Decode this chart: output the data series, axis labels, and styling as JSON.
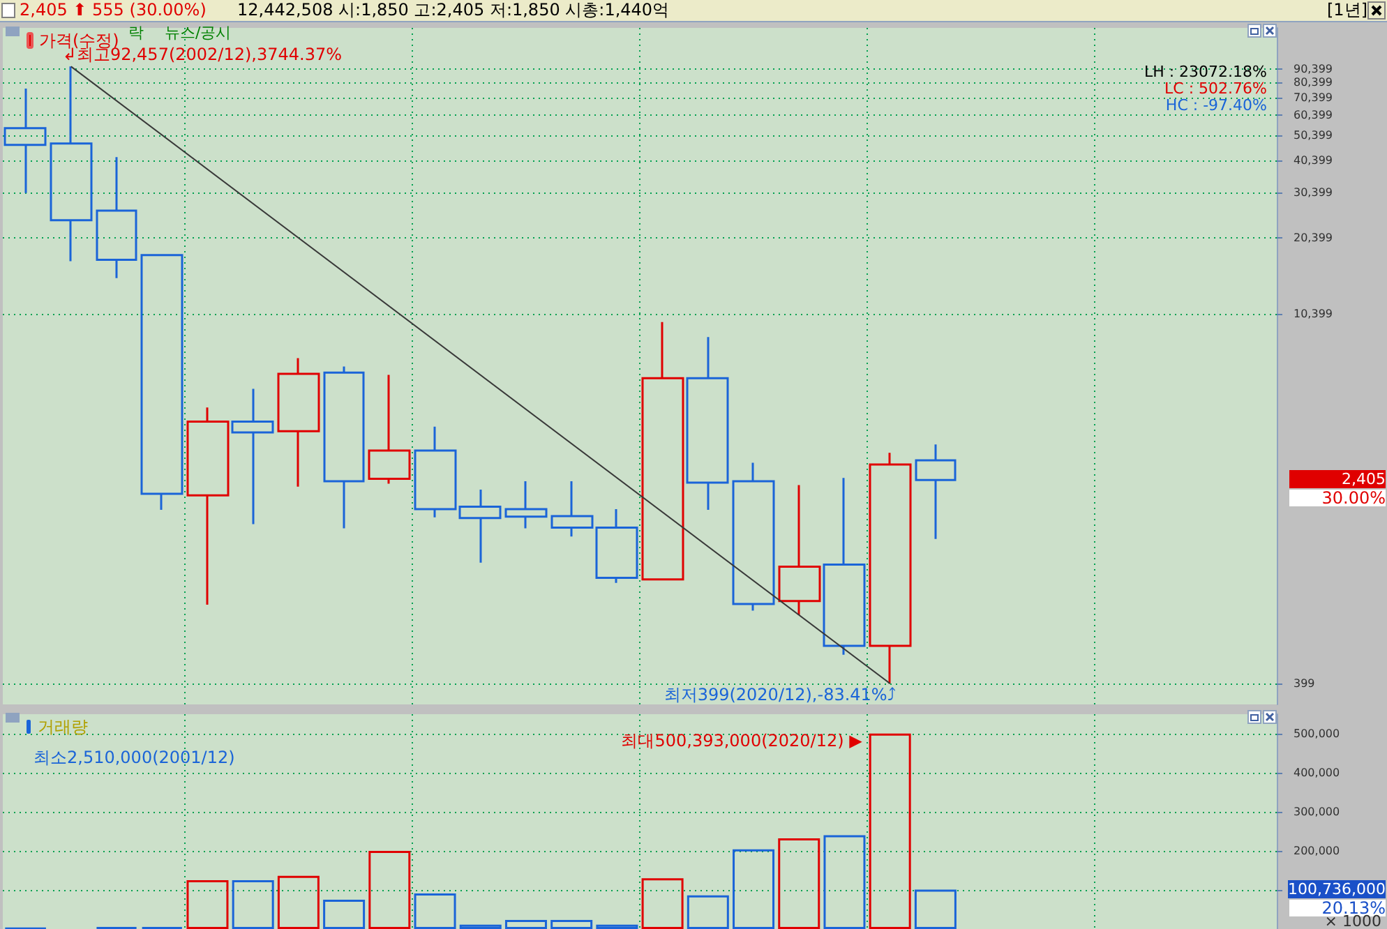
{
  "chart_data": [
    {
      "type": "candlestick",
      "title": "2,405 ⬆ 555 (30.00%)",
      "subtitle": "12,442,508 시:1,850 고:2,405 저:1,850 시총:1,440억",
      "categories": [
        null,
        null,
        null,
        null,
        null,
        null,
        null,
        null,
        null,
        null,
        null,
        null,
        null,
        null,
        null,
        null,
        null,
        null,
        null,
        null,
        null,
        null,
        null,
        null,
        null,
        null,
        null,
        null
      ],
      "series": [
        {
          "name": "가격(수정)",
          "ohlc": [
            [
              53700,
              76100,
              30300,
              46300
            ],
            [
              46900,
              92457,
              16600,
              23800
            ],
            [
              25900,
              41600,
              14300,
              16800
            ],
            [
              17500,
              17500,
              1850,
              2130
            ],
            [
              2100,
              4560,
              800,
              4030
            ],
            [
              4030,
              5380,
              1630,
              3660
            ],
            [
              3700,
              7050,
              2270,
              6140
            ],
            [
              6210,
              6550,
              1570,
              2380
            ],
            [
              2430,
              6080,
              2330,
              3120
            ],
            [
              3120,
              3850,
              1730,
              1860
            ],
            [
              1900,
              2210,
              1160,
              1720
            ],
            [
              1860,
              2380,
              1570,
              1740
            ],
            [
              1750,
              2380,
              1460,
              1580
            ],
            [
              1580,
              1860,
              970,
              1015
            ],
            [
              1000,
              9700,
              1000,
              5910
            ],
            [
              5910,
              8500,
              1850,
              2350
            ],
            [
              2380,
              2800,
              760,
              805
            ],
            [
              827,
              2300,
              730,
              1120
            ],
            [
              1140,
              2450,
              515,
              557
            ],
            [
              557,
              3060,
              399,
              2760
            ],
            [
              2860,
              3290,
              1430,
              2405
            ],
            null,
            null,
            null,
            null,
            null,
            null,
            null
          ],
          "colors": [
            "#1a64d8",
            "#1a64d8",
            "#1a64d8",
            "#1a64d8",
            "#e00000",
            "#1a64d8",
            "#e00000",
            "#1a64d8",
            "#e00000",
            "#1a64d8",
            "#1a64d8",
            "#1a64d8",
            "#1a64d8",
            "#1a64d8",
            "#e00000",
            "#1a64d8",
            "#1a64d8",
            "#e00000",
            "#1a64d8",
            "#e00000",
            "#1a64d8",
            null,
            null,
            null,
            null,
            null,
            null,
            null
          ]
        },
        {
          "type": "line",
          "color": "#383838",
          "values": [
            null,
            92457,
            null,
            null,
            null,
            null,
            null,
            null,
            null,
            null,
            null,
            null,
            null,
            null,
            null,
            null,
            null,
            null,
            null,
            399,
            null,
            null,
            null,
            null,
            null,
            null,
            null,
            null
          ]
        }
      ],
      "ylim": [
        332,
        130000
      ],
      "yticks": [
        {
          "value": 399,
          "label": "399"
        },
        {
          "value": 10399,
          "label": "10,399"
        },
        {
          "value": 20399,
          "label": "20,399"
        },
        {
          "value": 30399,
          "label": "30,399"
        },
        {
          "value": 40399,
          "label": "40,399"
        },
        {
          "value": 50399,
          "label": "50,399"
        },
        {
          "value": 60399,
          "label": "60,399"
        },
        {
          "value": 70399,
          "label": "70,399"
        },
        {
          "value": 80399,
          "label": "80,399"
        },
        {
          "value": 90399,
          "label": "90,399"
        }
      ],
      "log": true,
      "grid": true,
      "legend": "top left",
      "tick_labels": "y",
      "marker": "none",
      "annotations": [
        "락",
        "뉴스/공시",
        "[1년]",
        "LH : 23072.18%",
        "LC :   502.76%",
        "HC :   -97.40%",
        "30.00%",
        "↲최고92,457(2002/12),3744.37%",
        "최저399(2020/12),-83.41%⤴",
        "2,405"
      ]
    },
    {
      "type": "bar",
      "ylabel": "× 1000",
      "categories": [
        null,
        null,
        null,
        null,
        null,
        null,
        null,
        null,
        null,
        null,
        null,
        null,
        null,
        null,
        null,
        null,
        null,
        null,
        null,
        null,
        null,
        null,
        null,
        null,
        null,
        null,
        null,
        null
      ],
      "series": [
        {
          "name": "거래량",
          "values": [
            2510,
            null,
            5000,
            5000,
            125000,
            125000,
            136000,
            75000,
            200000,
            91000,
            11000,
            23000,
            23000,
            11000,
            130000,
            86000,
            204000,
            232000,
            240000,
            500393,
            100736,
            null,
            null,
            null,
            null,
            null,
            null,
            null
          ],
          "colors": [
            "#1a64d8",
            null,
            "#1a64d8",
            "#1a64d8",
            "#e00000",
            "#1a64d8",
            "#e00000",
            "#1a64d8",
            "#e00000",
            "#1a64d8",
            "#1a64d8",
            "#1a64d8",
            "#1a64d8",
            "#1a64d8",
            "#e00000",
            "#1a64d8",
            "#1a64d8",
            "#e00000",
            "#1a64d8",
            "#e00000",
            "#1a64d8",
            null,
            null,
            null,
            null,
            null,
            null,
            null
          ]
        }
      ],
      "ylim": [
        0,
        550000
      ],
      "yticks": [
        {
          "value": 100000,
          "label": null
        },
        {
          "value": 200000,
          "label": "200,000"
        },
        {
          "value": 300000,
          "label": "300,000"
        },
        {
          "value": 400000,
          "label": "400,000"
        },
        {
          "value": 500000,
          "label": "500,000"
        }
      ],
      "grid": true,
      "legend": "top left",
      "tick_labels": "y",
      "annotations": [
        "최소2,510,000(2001/12)",
        "20.13%",
        "최대500,393,000(2020/12) ▶",
        "100,736,000"
      ]
    }
  ]
}
